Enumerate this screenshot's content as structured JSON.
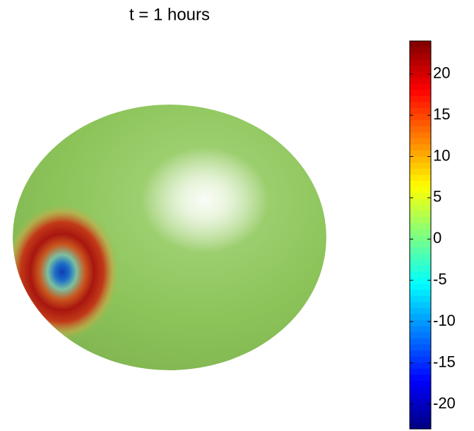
{
  "chart_data": {
    "type": "surface",
    "title": "t = 1 hours",
    "colormap": "jet",
    "clim": [
      -23,
      24
    ],
    "cticks": [
      -20,
      -15,
      -10,
      -5,
      0,
      5,
      10,
      15,
      20
    ]
  }
}
